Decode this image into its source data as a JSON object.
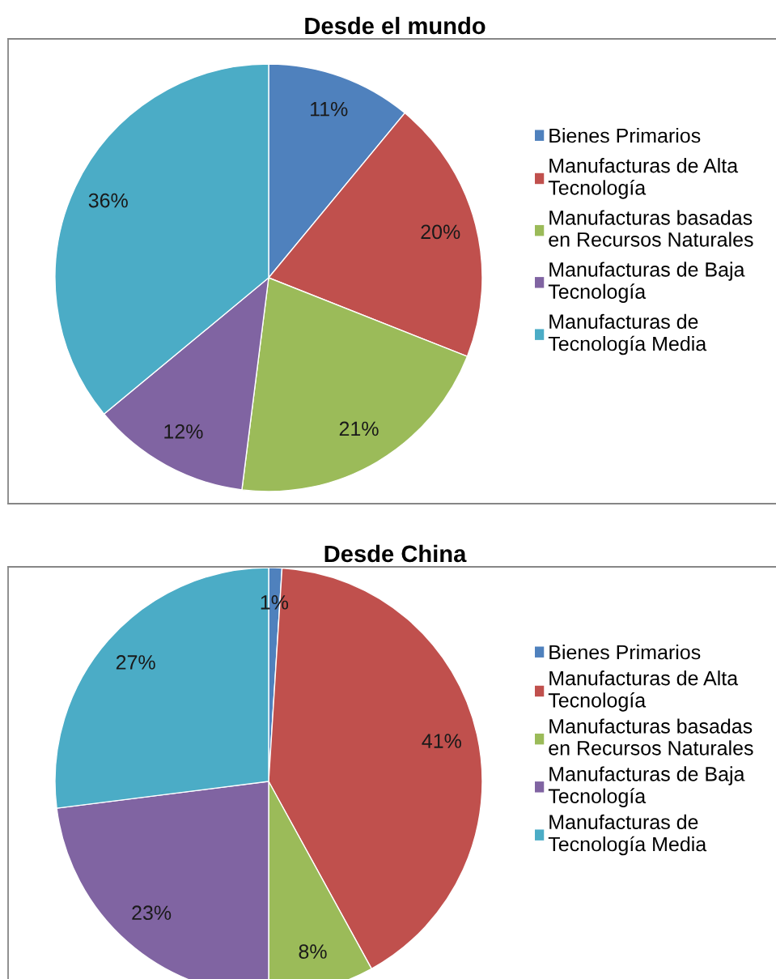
{
  "chart_data": [
    {
      "type": "pie",
      "title": "Desde el mundo",
      "categories": [
        "Bienes Primarios",
        "Manufacturas de Alta\nTecnología",
        "Manufacturas basadas\nen Recursos Naturales",
        "Manufacturas de Baja\nTecnología",
        "Manufacturas de\nTecnología Media"
      ],
      "values": [
        11,
        20,
        21,
        12,
        36
      ],
      "value_labels": [
        "11%",
        "20%",
        "21%",
        "12%",
        "36%"
      ],
      "colors": [
        "#4f81bd",
        "#c0504d",
        "#9bbb59",
        "#8064a2",
        "#4bacc6"
      ],
      "legend": "right"
    },
    {
      "type": "pie",
      "title": "Desde China",
      "categories": [
        "Bienes Primarios",
        "Manufacturas de Alta\nTecnología",
        "Manufacturas basadas\nen Recursos Naturales",
        "Manufacturas de Baja\nTecnología",
        "Manufacturas de\nTecnología Media"
      ],
      "values": [
        1,
        41,
        8,
        23,
        27
      ],
      "value_labels": [
        "1%",
        "41%",
        "8%",
        "23%",
        "27%"
      ],
      "colors": [
        "#4f81bd",
        "#c0504d",
        "#9bbb59",
        "#8064a2",
        "#4bacc6"
      ],
      "legend": "right"
    }
  ]
}
